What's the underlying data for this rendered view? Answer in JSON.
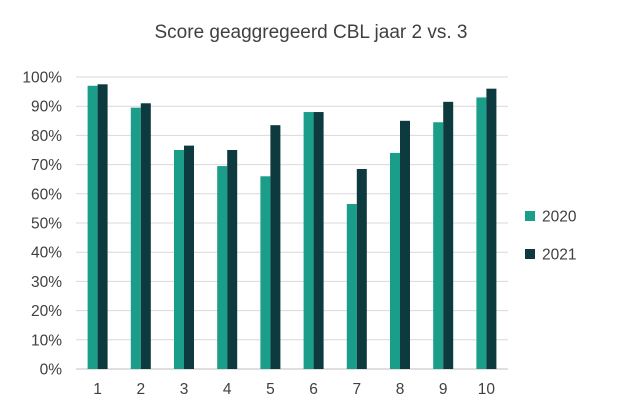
{
  "chart_data": {
    "type": "bar",
    "title": "Score geaggregeerd CBL jaar 2 vs. 3",
    "xlabel": "",
    "ylabel": "",
    "categories": [
      "1",
      "2",
      "3",
      "4",
      "5",
      "6",
      "7",
      "8",
      "9",
      "10"
    ],
    "series": [
      {
        "name": "2020",
        "color": "#1a9e8a",
        "values": [
          97,
          89.5,
          75,
          69.5,
          66,
          88,
          56.5,
          74,
          84.5,
          93
        ]
      },
      {
        "name": "2021",
        "color": "#0c3a3e",
        "values": [
          97.5,
          91,
          76.5,
          75,
          83.5,
          88,
          68.5,
          85,
          91.5,
          96
        ]
      }
    ],
    "ylim": [
      0,
      100
    ],
    "yticks": [
      "0%",
      "10%",
      "20%",
      "30%",
      "40%",
      "50%",
      "60%",
      "70%",
      "80%",
      "90%",
      "100%"
    ],
    "grid": true,
    "legend_position": "right"
  }
}
